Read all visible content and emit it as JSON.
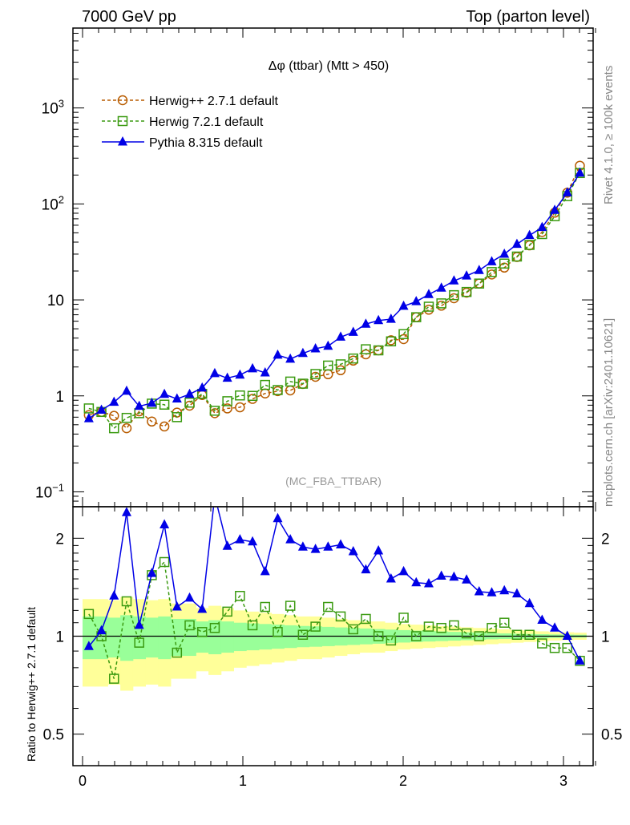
{
  "header": {
    "left": "7000 GeV pp",
    "right": "Top (parton level)"
  },
  "side_labels": {
    "rivet": "Rivet 4.1.0, ≥ 100k events",
    "mcplots": "mcplots.cern.ch [arXiv:2401.10621]"
  },
  "chart_data": [
    {
      "type": "line",
      "title": "Δφ (ttbar) (Mtt > 450)",
      "annotation": "(MC_FBA_TTBAR)",
      "xlabel": "",
      "ylabel": "",
      "xlim": [
        -0.06,
        3.185
      ],
      "ylim": [
        0.07,
        6800
      ],
      "yscale": "log",
      "yticks": [
        {
          "v": 0.1,
          "b": "10",
          "e": "−1"
        },
        {
          "v": 1,
          "b": "1",
          "e": ""
        },
        {
          "v": 10,
          "b": "10",
          "e": ""
        },
        {
          "v": 100,
          "b": "10",
          "e": "2"
        },
        {
          "v": 1000,
          "b": "10",
          "e": "3"
        }
      ],
      "legend_position": "top-left",
      "nbins": 40,
      "series": [
        {
          "name": "Herwig++ 2.7.1 default",
          "color": "#b85c00",
          "marker": "circle",
          "dashed": true,
          "values": [
            0.63,
            0.68,
            0.62,
            0.46,
            0.69,
            0.54,
            0.48,
            0.67,
            0.79,
            1.02,
            0.66,
            0.74,
            0.76,
            0.93,
            1.06,
            1.12,
            1.14,
            1.33,
            1.58,
            1.68,
            1.85,
            2.33,
            2.71,
            2.98,
            3.8,
            3.9,
            6.6,
            7.9,
            8.7,
            10.4,
            11.9,
            14.8,
            18.4,
            21.7,
            28,
            37,
            51,
            81,
            131,
            250
          ]
        },
        {
          "name": "Herwig 7.2.1 default",
          "color": "#3a9a10",
          "marker": "square",
          "dashed": true,
          "values": [
            0.74,
            0.68,
            0.46,
            0.59,
            0.66,
            0.83,
            0.81,
            0.6,
            0.85,
            1.05,
            0.7,
            0.88,
            1.01,
            1.0,
            1.3,
            1.15,
            1.41,
            1.34,
            1.69,
            2.07,
            2.13,
            2.45,
            3.06,
            2.98,
            3.7,
            4.4,
            6.6,
            8.5,
            9.2,
            11.2,
            12.1,
            14.8,
            19.5,
            23.9,
            28.3,
            37.4,
            48.5,
            74.5,
            120.5,
            210
          ]
        },
        {
          "name": "Pythia 8.315 default",
          "color": "#0000e6",
          "marker": "triangle",
          "dashed": false,
          "values": [
            0.58,
            0.71,
            0.86,
            1.12,
            0.78,
            0.84,
            1.04,
            0.93,
            1.04,
            1.21,
            1.71,
            1.53,
            1.65,
            1.92,
            1.74,
            2.66,
            2.42,
            2.77,
            3.1,
            3.3,
            4.1,
            4.6,
            5.6,
            6.1,
            6.3,
            8.6,
            9.6,
            11.4,
            13.3,
            15.8,
            17.8,
            20.3,
            25,
            30,
            38,
            47,
            57,
            86,
            131,
            210
          ]
        }
      ]
    },
    {
      "type": "line",
      "title": "",
      "xlabel": "",
      "ylabel": "Ratio to Herwig++ 2.7.1 default",
      "xlim": [
        -0.06,
        3.185
      ],
      "ylim": [
        0.4,
        2.5
      ],
      "yscale": "log",
      "xticks": [
        "0",
        "1",
        "2",
        "3"
      ],
      "yticks": [
        {
          "v": 0.5,
          "label": "0.5"
        },
        {
          "v": 1,
          "label": "1"
        },
        {
          "v": 2,
          "label": "2"
        }
      ],
      "band_outer_halfwidth": [
        0.3,
        0.3,
        0.29,
        0.32,
        0.3,
        0.29,
        0.3,
        0.26,
        0.26,
        0.22,
        0.24,
        0.22,
        0.2,
        0.19,
        0.18,
        0.17,
        0.16,
        0.15,
        0.15,
        0.14,
        0.13,
        0.12,
        0.11,
        0.11,
        0.1,
        0.09,
        0.085,
        0.08,
        0.075,
        0.07,
        0.065,
        0.06,
        0.055,
        0.05,
        0.045,
        0.04,
        0.035,
        0.03,
        0.028,
        0.025
      ],
      "band_inner_halfwidth": [
        0.15,
        0.15,
        0.14,
        0.16,
        0.15,
        0.14,
        0.15,
        0.13,
        0.13,
        0.11,
        0.12,
        0.11,
        0.1,
        0.095,
        0.09,
        0.085,
        0.08,
        0.075,
        0.072,
        0.068,
        0.064,
        0.06,
        0.056,
        0.052,
        0.048,
        0.044,
        0.04,
        0.037,
        0.034,
        0.031,
        0.028,
        0.025,
        0.022,
        0.02,
        0.018,
        0.016,
        0.014,
        0.012,
        0.011,
        0.01
      ],
      "series": [
        {
          "name": "Herwig 7.2.1 default",
          "color": "#3a9a10",
          "marker": "square",
          "dashed": true,
          "values": [
            1.17,
            1.0,
            0.74,
            1.28,
            0.955,
            1.54,
            1.69,
            0.89,
            1.08,
            1.03,
            1.06,
            1.19,
            1.33,
            1.08,
            1.23,
            1.03,
            1.24,
            1.01,
            1.07,
            1.23,
            1.15,
            1.05,
            1.13,
            1.0,
            0.97,
            1.14,
            1.0,
            1.07,
            1.06,
            1.08,
            1.02,
            1.0,
            1.06,
            1.1,
            1.01,
            1.01,
            0.95,
            0.92,
            0.92,
            0.84
          ]
        },
        {
          "name": "Pythia 8.315 default",
          "color": "#0000e6",
          "marker": "triangle",
          "dashed": false,
          "values": [
            0.93,
            1.04,
            1.33,
            2.4,
            1.08,
            1.56,
            2.2,
            1.23,
            1.31,
            1.21,
            2.7,
            1.89,
            1.98,
            1.95,
            1.58,
            2.3,
            1.98,
            1.88,
            1.85,
            1.88,
            1.91,
            1.82,
            1.6,
            1.83,
            1.5,
            1.58,
            1.46,
            1.45,
            1.53,
            1.52,
            1.49,
            1.37,
            1.36,
            1.38,
            1.35,
            1.26,
            1.12,
            1.06,
            1.0,
            0.84
          ]
        }
      ]
    }
  ]
}
